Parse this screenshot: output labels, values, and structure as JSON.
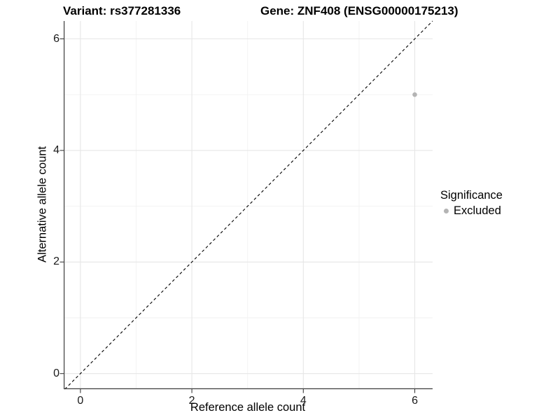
{
  "header": {
    "variant_title": "Variant: rs377281336",
    "gene_title": "Gene: ZNF408 (ENSG00000175213)"
  },
  "legend": {
    "title": "Significance",
    "entries": [
      {
        "label": "Excluded",
        "color": "#b4b4b4"
      }
    ]
  },
  "colors": {
    "background": "#ffffff",
    "major_grid": "#e6e6e6",
    "minor_grid": "#f2f2f2",
    "axis_line": "#3c3c3c",
    "tick_mark": "#3c3c3c",
    "reference_line": "#000000",
    "point": "#b4b4b4"
  },
  "chart_data": {
    "type": "scatter",
    "title_left": "Variant: rs377281336",
    "title_right": "Gene: ZNF408 (ENSG00000175213)",
    "xlabel": "Reference allele count",
    "ylabel": "Alternative allele count",
    "xlim": [
      -0.3,
      6.32
    ],
    "ylim": [
      -0.28,
      6.32
    ],
    "x_ticks": [
      0,
      2,
      4,
      6
    ],
    "y_ticks": [
      0,
      2,
      4,
      6
    ],
    "x_minor_ticks": [
      1,
      3,
      5
    ],
    "y_minor_ticks": [
      1,
      3,
      5
    ],
    "grid": "on",
    "legend_position": "right",
    "reference_line": {
      "kind": "diagonal_y_equals_x",
      "style": "dashed",
      "color": "#000000"
    },
    "series": [
      {
        "name": "Excluded",
        "color": "#b4b4b4",
        "points": [
          {
            "x": 6,
            "y": 5
          }
        ]
      }
    ]
  }
}
